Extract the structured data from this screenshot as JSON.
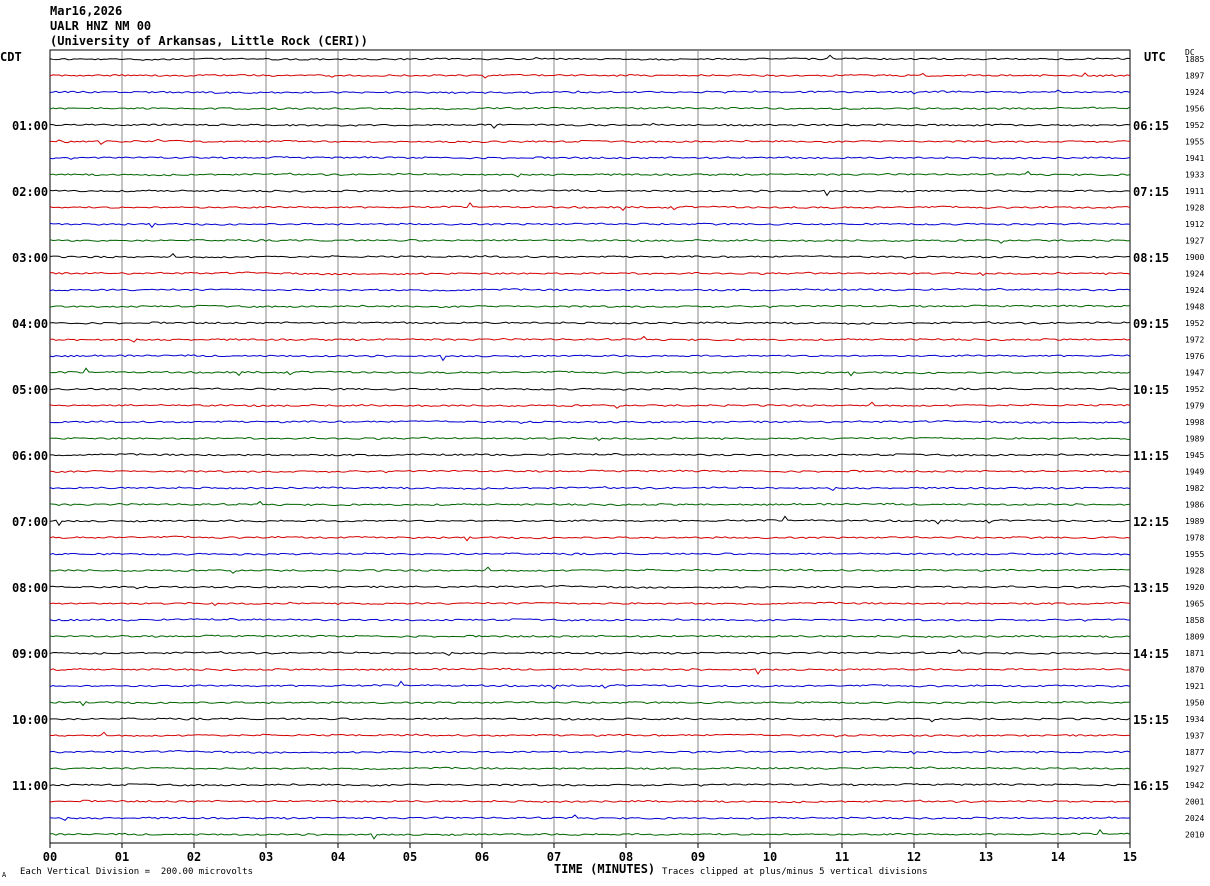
{
  "header": {
    "date": "Mar16,2026",
    "station": "UALR HNZ NM 00",
    "institution": "(University of Arkansas, Little Rock (CERI))"
  },
  "left_timezone": "CDT",
  "right_timezone": "UTC",
  "dc_label": "DC",
  "footer": {
    "vertical_division": "Each Vertical Division =  200.00 microvolts",
    "clipping_note": "Traces clipped at plus/minus 5 vertical divisions",
    "corner_mark": "A"
  },
  "chart_data": {
    "type": "line",
    "title": "UALR HNZ NM 00",
    "xlabel": "TIME (MINUTES)",
    "xlim": [
      0,
      15
    ],
    "x_ticks": [
      "00",
      "01",
      "02",
      "03",
      "04",
      "05",
      "06",
      "07",
      "08",
      "09",
      "10",
      "11",
      "12",
      "13",
      "14",
      "15"
    ],
    "trace_colors": [
      "#000000",
      "#d40000",
      "#0000d0",
      "#006400"
    ],
    "left_hour_labels": [
      "01:00",
      "02:00",
      "03:00",
      "04:00",
      "05:00",
      "06:00",
      "07:00",
      "08:00",
      "09:00",
      "10:00",
      "11:00"
    ],
    "right_hour_labels": [
      "06:15",
      "07:15",
      "08:15",
      "09:15",
      "10:15",
      "11:15",
      "12:15",
      "13:15",
      "14:15",
      "15:15",
      "16:15"
    ],
    "dc_offsets": [
      "1885",
      "1897",
      "1924",
      "1956",
      "1952",
      "1955",
      "1941",
      "1933",
      "1911",
      "1928",
      "1912",
      "1927",
      "1900",
      "1924",
      "1924",
      "1948",
      "1952",
      "1972",
      "1976",
      "1947",
      "1952",
      "1979",
      "1998",
      "1989",
      "1945",
      "1949",
      "1982",
      "1986",
      "1989",
      "1978",
      "1955",
      "1928",
      "1920",
      "1965",
      "1858",
      "1809",
      "1871",
      "1870",
      "1921",
      "1950",
      "1934",
      "1937",
      "1877",
      "1927",
      "1942",
      "2001",
      "2024",
      "2010"
    ],
    "traces_per_hour": 4,
    "trace_minutes": 15
  }
}
